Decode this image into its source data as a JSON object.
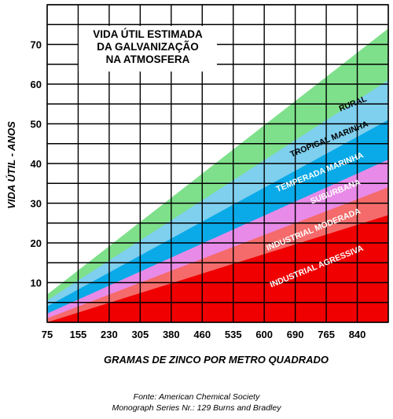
{
  "chart_data": {
    "type": "area",
    "title_lines": [
      "VIDA ÚTIL ESTIMADA",
      "DA GALVANIZAÇÃO",
      "NA ATMOSFERA"
    ],
    "xlabel": "GRAMAS DE ZINCO POR METRO QUADRADO",
    "ylabel": "VIDA ÚTIL - ANOS",
    "x_tick_labels": [
      "75",
      "155",
      "230",
      "305",
      "380",
      "460",
      "535",
      "600",
      "690",
      "765",
      "840"
    ],
    "y_tick_labels": [
      "10",
      "20",
      "30",
      "40",
      "50",
      "60",
      "70"
    ],
    "ylim": [
      0,
      80
    ],
    "grid": true,
    "series": [
      {
        "name": "RURAL",
        "color": "#7ee08a",
        "start": 7,
        "end": 74
      },
      {
        "name": "TROPICAL MARINHA",
        "color": "#7fcfef",
        "start": 5.5,
        "end": 61
      },
      {
        "name": "TEMPERADA MARINHA",
        "color": "#0aaae8",
        "start": 4,
        "end": 51
      },
      {
        "name": "SUBURBANA",
        "color": "#e88ae8",
        "start": 2.2,
        "end": 41
      },
      {
        "name": "INDUSTRIAL MODERADA",
        "color": "#f56b6b",
        "start": 1,
        "end": 34
      },
      {
        "name": "INDUSTRIAL AGRESSIVA",
        "color": "#f00000",
        "start": 0,
        "end": 27
      }
    ]
  },
  "source": {
    "line1": "Fonte: American Chemical Society",
    "line2": "Monograph Series Nr.: 129  Burns and Bradley"
  }
}
